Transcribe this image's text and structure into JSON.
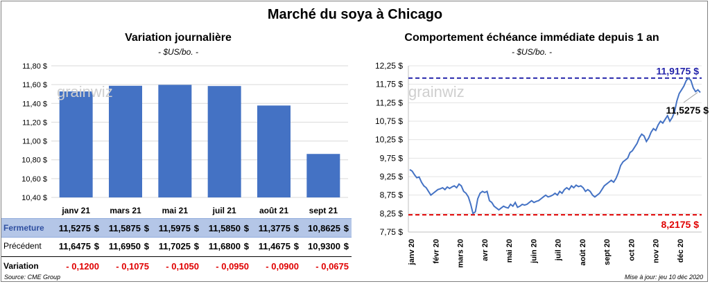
{
  "header": {
    "title": "Marché du soya à Chicago"
  },
  "left_chart": {
    "title": "Variation  journalière",
    "unit": "- $US/bo. -"
  },
  "right_chart": {
    "title": "Comportement  échéance immédiate depuis 1 an",
    "unit": "- $US/bo. -"
  },
  "watermark": "grainwiz",
  "table": {
    "rows": [
      {
        "label": "Fermeture",
        "values": [
          "11,5275",
          "11,5875",
          "11,5975",
          "11,5850",
          "11,3775",
          "10,8625"
        ],
        "suffix": "$"
      },
      {
        "label": "Précédent",
        "values": [
          "11,6475",
          "11,6950",
          "11,7025",
          "11,6800",
          "11,4675",
          "10,9300"
        ],
        "suffix": "$"
      },
      {
        "label": "Variation",
        "values": [
          "- 0,1200",
          "- 0,1075",
          "- 0,1050",
          "- 0,0950",
          "- 0,0900",
          "- 0,0675"
        ],
        "suffix": ""
      }
    ]
  },
  "footer": {
    "source": "Source: CME Group",
    "updated": "Mise à jour: jeu 10 déc 2020"
  },
  "colors": {
    "bar": "#4472c4",
    "line": "#4472c4",
    "max_line": "#2222aa",
    "min_line": "#e00000",
    "close_row": "#b4c6e7"
  },
  "chart_data": [
    {
      "type": "bar",
      "categories": [
        "janv 21",
        "mars 21",
        "mai 21",
        "juil 21",
        "août 21",
        "sept 21"
      ],
      "values": [
        11.5275,
        11.5875,
        11.5975,
        11.585,
        11.3775,
        10.8625
      ],
      "ylim": [
        10.4,
        11.8
      ],
      "yticks": [
        10.4,
        10.6,
        10.8,
        11.0,
        11.2,
        11.4,
        11.6,
        11.8
      ],
      "ytick_labels": [
        "10,40 $",
        "10,60 $",
        "10,80 $",
        "11,00 $",
        "11,20 $",
        "11,40 $",
        "11,60 $",
        "11,80 $"
      ],
      "grid": true
    },
    {
      "type": "line",
      "x_labels": [
        "janv 20",
        "févr 20",
        "mars 20",
        "avr 20",
        "mai 20",
        "juin 20",
        "juil 20",
        "août 20",
        "sept 20",
        "oct 20",
        "nov 20",
        "déc 20"
      ],
      "ylim": [
        7.75,
        12.25
      ],
      "yticks": [
        7.75,
        8.25,
        8.75,
        9.25,
        9.75,
        10.25,
        10.75,
        11.25,
        11.75,
        12.25
      ],
      "ytick_labels": [
        "7,75 $",
        "8,25 $",
        "8,75 $",
        "9,25 $",
        "9,75 $",
        "10,25 $",
        "10,75 $",
        "11,25 $",
        "11,75 $",
        "12,25 $"
      ],
      "series": [
        {
          "values": [
            9.44,
            9.4,
            9.3,
            9.22,
            9.24,
            9.1,
            9.0,
            8.95,
            8.85,
            8.75,
            8.8,
            8.85,
            8.9,
            8.92,
            8.95,
            8.9,
            8.97,
            8.93,
            8.97,
            9.0,
            8.95,
            9.05,
            9.0,
            8.85,
            8.8,
            8.7,
            8.5,
            8.25,
            8.3,
            8.65,
            8.8,
            8.85,
            8.82,
            8.85,
            8.6,
            8.55,
            8.45,
            8.4,
            8.35,
            8.4,
            8.45,
            8.42,
            8.4,
            8.5,
            8.45,
            8.55,
            8.42,
            8.45,
            8.5,
            8.48,
            8.5,
            8.55,
            8.6,
            8.55,
            8.58,
            8.6,
            8.65,
            8.7,
            8.75,
            8.7,
            8.72,
            8.75,
            8.8,
            8.75,
            8.85,
            8.8,
            8.9,
            8.95,
            8.9,
            9.0,
            8.95,
            9.02,
            8.98,
            9.0,
            8.95,
            8.85,
            8.9,
            8.85,
            8.75,
            8.7,
            8.75,
            8.8,
            8.9,
            9.0,
            9.05,
            9.1,
            9.15,
            9.1,
            9.2,
            9.35,
            9.55,
            9.65,
            9.7,
            9.75,
            9.9,
            9.95,
            10.05,
            10.15,
            10.3,
            10.4,
            10.35,
            10.2,
            10.3,
            10.45,
            10.55,
            10.5,
            10.65,
            10.75,
            10.7,
            10.8,
            10.9,
            10.75,
            10.85,
            11.0,
            11.3,
            11.5,
            11.6,
            11.7,
            11.85,
            11.9175,
            11.85,
            11.65,
            11.55,
            11.6,
            11.5275
          ]
        }
      ],
      "annotations": [
        {
          "text": "11,9175  $",
          "value": 11.9175
        },
        {
          "text": "11,5275 $",
          "value": 11.5275
        },
        {
          "text": "8,2175  $",
          "value": 8.2175
        }
      ],
      "reference_lines": [
        11.9175,
        8.2175
      ]
    }
  ]
}
